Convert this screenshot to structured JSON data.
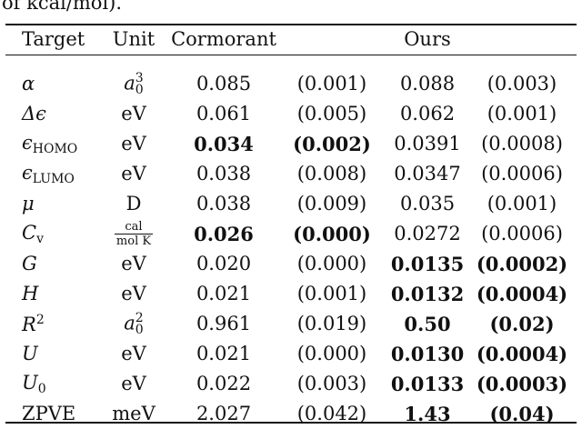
{
  "caption_tail": "of kcal/mol).",
  "headers": {
    "target": "Target",
    "unit": "Unit",
    "cormorant": "Cormorant",
    "ours": "Ours"
  },
  "rows": [
    {
      "target": "α",
      "sub": "",
      "sup": "",
      "unit": "a",
      "unit_sub": "0",
      "unit_sup": "3",
      "c_val": "0.085",
      "c_err": "(0.001)",
      "o_val": "0.088",
      "o_err": "(0.003)",
      "bold_c": false,
      "bold_o": false
    },
    {
      "target": "Δϵ",
      "sub": "",
      "sup": "",
      "unit": "eV",
      "unit_sub": "",
      "unit_sup": "",
      "c_val": "0.061",
      "c_err": "(0.005)",
      "o_val": "0.062",
      "o_err": "(0.001)",
      "bold_c": false,
      "bold_o": false
    },
    {
      "target": "ϵ",
      "sub": "HOMO",
      "sup": "",
      "unit": "eV",
      "unit_sub": "",
      "unit_sup": "",
      "c_val": "0.034",
      "c_err": "(0.002)",
      "o_val": "0.0391",
      "o_err": "(0.0008)",
      "bold_c": true,
      "bold_o": false
    },
    {
      "target": "ϵ",
      "sub": "LUMO",
      "sup": "",
      "unit": "eV",
      "unit_sub": "",
      "unit_sup": "",
      "c_val": "0.038",
      "c_err": "(0.008)",
      "o_val": "0.0347",
      "o_err": "(0.0006)",
      "bold_c": false,
      "bold_o": false
    },
    {
      "target": "μ",
      "sub": "",
      "sup": "",
      "unit": "D",
      "unit_sub": "",
      "unit_sup": "",
      "c_val": "0.038",
      "c_err": "(0.009)",
      "o_val": "0.035",
      "o_err": "(0.001)",
      "bold_c": false,
      "bold_o": false
    },
    {
      "target": "C",
      "sub": "v",
      "sup": "",
      "unit": "",
      "unit_sub": "",
      "unit_sup": "",
      "frac_num": "cal",
      "frac_den": "mol K",
      "c_val": "0.026",
      "c_err": "(0.000)",
      "o_val": "0.0272",
      "o_err": "(0.0006)",
      "bold_c": true,
      "bold_o": false
    },
    {
      "target": "G",
      "sub": "",
      "sup": "",
      "unit": "eV",
      "unit_sub": "",
      "unit_sup": "",
      "c_val": "0.020",
      "c_err": "(0.000)",
      "o_val": "0.0135",
      "o_err": "(0.0002)",
      "bold_c": false,
      "bold_o": true
    },
    {
      "target": "H",
      "sub": "",
      "sup": "",
      "unit": "eV",
      "unit_sub": "",
      "unit_sup": "",
      "c_val": "0.021",
      "c_err": "(0.001)",
      "o_val": "0.0132",
      "o_err": "(0.0004)",
      "bold_c": false,
      "bold_o": true
    },
    {
      "target": "R",
      "sub": "",
      "sup": "2",
      "unit": "a",
      "unit_sub": "0",
      "unit_sup": "2",
      "c_val": "0.961",
      "c_err": "(0.019)",
      "o_val": "0.50",
      "o_err": "(0.02)",
      "bold_c": false,
      "bold_o": true
    },
    {
      "target": "U",
      "sub": "",
      "sup": "",
      "unit": "eV",
      "unit_sub": "",
      "unit_sup": "",
      "c_val": "0.021",
      "c_err": "(0.000)",
      "o_val": "0.0130",
      "o_err": "(0.0004)",
      "bold_c": false,
      "bold_o": true
    },
    {
      "target": "U",
      "sub": "0",
      "sup": "",
      "unit": "eV",
      "unit_sub": "",
      "unit_sup": "",
      "c_val": "0.022",
      "c_err": "(0.003)",
      "o_val": "0.0133",
      "o_err": "(0.0003)",
      "bold_c": false,
      "bold_o": true
    },
    {
      "target": "ZPVE",
      "sub": "",
      "sup": "",
      "unit": "meV",
      "unit_sub": "",
      "unit_sup": "",
      "c_val": "2.027",
      "c_err": "(0.042)",
      "o_val": "1.43",
      "o_err": "(0.04)",
      "bold_c": false,
      "bold_o": true,
      "upright": true
    }
  ]
}
